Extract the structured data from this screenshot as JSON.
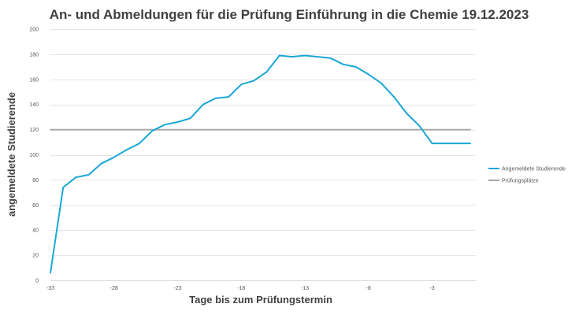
{
  "chart_data": {
    "type": "line",
    "title": "An- und Abmeldungen für die Prüfung Einführung in die Chemie 19.12.2023",
    "xlabel": "Tage bis zum Prüfungstermin",
    "ylabel": "angemeldete Studierende",
    "xlim": [
      -33,
      0
    ],
    "ylim": [
      0,
      200
    ],
    "x_ticks": [
      -33,
      -28,
      -23,
      -18,
      -13,
      -8,
      -3
    ],
    "y_ticks": [
      0,
      20,
      40,
      60,
      80,
      100,
      120,
      140,
      160,
      180,
      200
    ],
    "grid": "horizontal",
    "legend_position": "right",
    "series": [
      {
        "name": "Angemeldete Studierende",
        "color": "#1aa7d6",
        "x": [
          -33,
          -32,
          -31,
          -30,
          -29,
          -28,
          -27,
          -26,
          -25,
          -24,
          -23,
          -22,
          -21,
          -20,
          -19,
          -18,
          -17,
          -16,
          -15,
          -14,
          -13,
          -12,
          -11,
          -10,
          -9,
          -8,
          -7,
          -6,
          -5,
          -4,
          -3,
          -2,
          -1,
          0
        ],
        "values": [
          6,
          74,
          82,
          84,
          93,
          98,
          104,
          109,
          119,
          124,
          126,
          129,
          140,
          145,
          146,
          156,
          159,
          166,
          179,
          178,
          179,
          178,
          177,
          172,
          170,
          164,
          157,
          146,
          133,
          123,
          109,
          109,
          109,
          109
        ]
      },
      {
        "name": "Prüfungsplätze",
        "color": "#a6a6a6",
        "x": [
          -33,
          0
        ],
        "values": [
          120,
          120
        ]
      }
    ]
  }
}
